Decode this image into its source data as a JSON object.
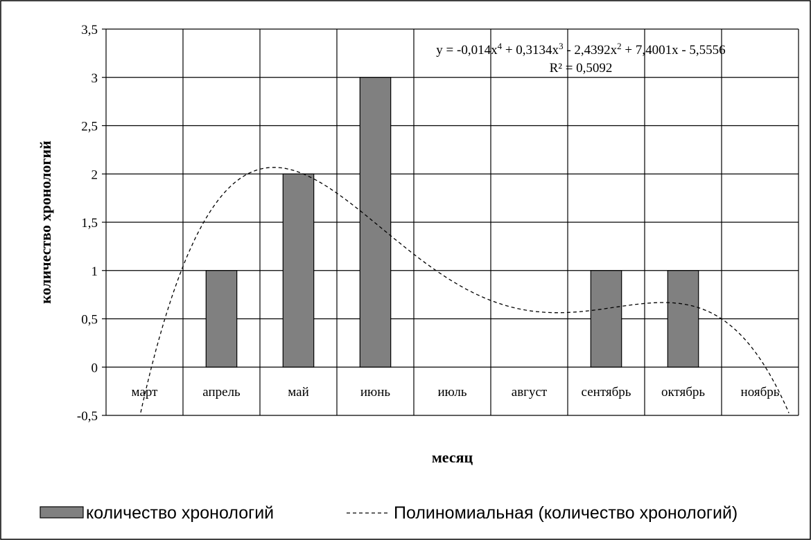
{
  "chart_data": {
    "type": "bar",
    "title": "",
    "xlabel": "месяц",
    "ylabel": "количество хронологий",
    "ylim": [
      -0.5,
      3.5
    ],
    "yticks": [
      -0.5,
      0,
      0.5,
      1,
      1.5,
      2,
      2.5,
      3,
      3.5
    ],
    "ytick_labels": [
      "-0,5",
      "0",
      "0,5",
      "1",
      "1,5",
      "2",
      "2,5",
      "3",
      "3,5"
    ],
    "categories": [
      "март",
      "апрель",
      "май",
      "июнь",
      "июль",
      "август",
      "сентябрь",
      "октябрь",
      "ноябрь"
    ],
    "series": [
      {
        "name": "количество хронологий",
        "type": "bar",
        "color": "#808080",
        "values": [
          0,
          1,
          2,
          3,
          0,
          0,
          1,
          1,
          0
        ]
      }
    ],
    "trendline": {
      "name": "Полиномиальная (количество хронологий)",
      "type": "polynomial",
      "order": 4,
      "coefficients": [
        -0.014,
        0.3134,
        -2.4392,
        7.4001,
        -5.5556
      ],
      "equation_parts": [
        "y = -0,014x",
        "4",
        " + 0,3134x",
        "3",
        " - 2,4392x",
        "2",
        " + 7,4001x - 5,5556"
      ],
      "r_squared_label": "R² = 0,5092",
      "style": "dashed",
      "color": "#000000"
    },
    "grid": true,
    "legend_position": "bottom"
  }
}
